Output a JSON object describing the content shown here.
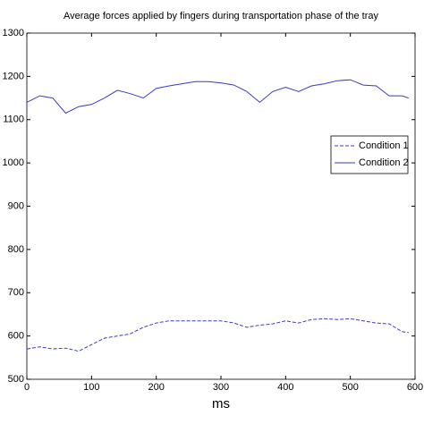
{
  "chart_data": {
    "type": "line",
    "title": "Average forces applied by fingers during transportation phase of the tray",
    "x_label": "ms",
    "x": [
      0,
      20,
      40,
      60,
      80,
      100,
      120,
      140,
      160,
      180,
      200,
      220,
      240,
      260,
      280,
      300,
      320,
      340,
      360,
      380,
      400,
      420,
      440,
      460,
      480,
      500,
      520,
      540,
      560,
      580,
      590
    ],
    "series": [
      {
        "name": "Condition 1",
        "color": "#3a3ac8",
        "linestyle": "dashed",
        "values": [
          570,
          575,
          570,
          572,
          565,
          580,
          595,
          600,
          605,
          620,
          630,
          635,
          635,
          635,
          635,
          635,
          630,
          620,
          625,
          628,
          635,
          630,
          638,
          640,
          638,
          640,
          635,
          630,
          628,
          610,
          608
        ]
      },
      {
        "name": "Condition 2",
        "color": "#3a3ac8",
        "linestyle": "solid",
        "values": [
          1140,
          1155,
          1150,
          1115,
          1130,
          1135,
          1150,
          1168,
          1160,
          1150,
          1172,
          1178,
          1183,
          1188,
          1188,
          1185,
          1180,
          1165,
          1140,
          1165,
          1175,
          1165,
          1178,
          1183,
          1190,
          1192,
          1180,
          1178,
          1155,
          1155,
          1150
        ]
      }
    ],
    "xlim": [
      0,
      600
    ],
    "xticks": [
      0,
      100,
      200,
      300,
      400,
      500,
      600
    ],
    "ylim": [
      500,
      1300
    ],
    "yticks": [
      500,
      600,
      700,
      800,
      900,
      1000,
      1100,
      1200,
      1300
    ],
    "grid": false,
    "legend": "right"
  }
}
